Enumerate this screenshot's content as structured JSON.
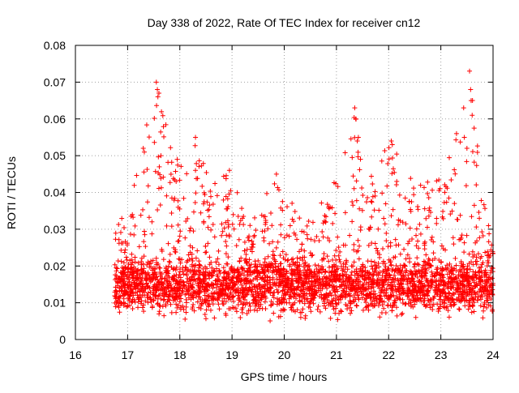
{
  "chart_data": {
    "type": "scatter",
    "title": "Day 338 of 2022, Rate Of TEC Index for receiver cn12",
    "xlabel": "GPS time / hours",
    "ylabel": "ROTI / TECUs",
    "xlim": [
      16,
      24
    ],
    "ylim": [
      0,
      0.08
    ],
    "x_ticks": [
      16,
      17,
      18,
      19,
      20,
      21,
      22,
      23,
      24
    ],
    "x_tick_labels": [
      "16",
      "17",
      "18",
      "19",
      "20",
      "21",
      "22",
      "23",
      "24"
    ],
    "y_ticks": [
      0,
      0.01,
      0.02,
      0.03,
      0.04,
      0.05,
      0.06,
      0.07,
      0.08
    ],
    "y_tick_labels": [
      "0",
      "0.01",
      "0.02",
      "0.03",
      "0.04",
      "0.05",
      "0.06",
      "0.07",
      "0.08"
    ],
    "grid": true,
    "marker": "+",
    "marker_color": "#ff0000",
    "series": [
      {
        "name": "ROTI",
        "x_start": 16.75,
        "x_end": 24.0,
        "baseline_median": 0.013,
        "baseline_range": [
          0.005,
          0.03
        ],
        "envelope": [
          {
            "x": 16.75,
            "max": 0.032
          },
          {
            "x": 17.0,
            "max": 0.034
          },
          {
            "x": 17.25,
            "max": 0.052
          },
          {
            "x": 17.55,
            "max": 0.07
          },
          {
            "x": 17.9,
            "max": 0.049
          },
          {
            "x": 18.3,
            "max": 0.055
          },
          {
            "x": 18.6,
            "max": 0.043
          },
          {
            "x": 19.0,
            "max": 0.046
          },
          {
            "x": 19.3,
            "max": 0.03
          },
          {
            "x": 19.8,
            "max": 0.045
          },
          {
            "x": 20.3,
            "max": 0.035
          },
          {
            "x": 20.8,
            "max": 0.038
          },
          {
            "x": 21.35,
            "max": 0.063
          },
          {
            "x": 21.6,
            "max": 0.045
          },
          {
            "x": 22.05,
            "max": 0.054
          },
          {
            "x": 22.5,
            "max": 0.042
          },
          {
            "x": 23.0,
            "max": 0.044
          },
          {
            "x": 23.3,
            "max": 0.056
          },
          {
            "x": 23.55,
            "max": 0.073
          },
          {
            "x": 23.8,
            "max": 0.04
          },
          {
            "x": 24.0,
            "max": 0.025
          }
        ],
        "spikes": [
          {
            "x": 17.3,
            "y": 0.052
          },
          {
            "x": 17.32,
            "y": 0.051
          },
          {
            "x": 17.55,
            "y": 0.07
          },
          {
            "x": 17.57,
            "y": 0.068
          },
          {
            "x": 17.58,
            "y": 0.066
          },
          {
            "x": 17.6,
            "y": 0.067
          },
          {
            "x": 17.95,
            "y": 0.049
          },
          {
            "x": 18.3,
            "y": 0.055
          },
          {
            "x": 18.3,
            "y": 0.046
          },
          {
            "x": 18.95,
            "y": 0.046
          },
          {
            "x": 19.85,
            "y": 0.045
          },
          {
            "x": 21.35,
            "y": 0.063
          },
          {
            "x": 21.37,
            "y": 0.06
          },
          {
            "x": 21.4,
            "y": 0.054
          },
          {
            "x": 21.42,
            "y": 0.055
          },
          {
            "x": 22.05,
            "y": 0.054
          },
          {
            "x": 22.07,
            "y": 0.053
          },
          {
            "x": 23.3,
            "y": 0.056
          },
          {
            "x": 23.45,
            "y": 0.055
          },
          {
            "x": 23.5,
            "y": 0.052
          },
          {
            "x": 23.55,
            "y": 0.073
          },
          {
            "x": 23.57,
            "y": 0.068
          },
          {
            "x": 23.58,
            "y": 0.065
          },
          {
            "x": 23.6,
            "y": 0.061
          }
        ]
      }
    ]
  }
}
